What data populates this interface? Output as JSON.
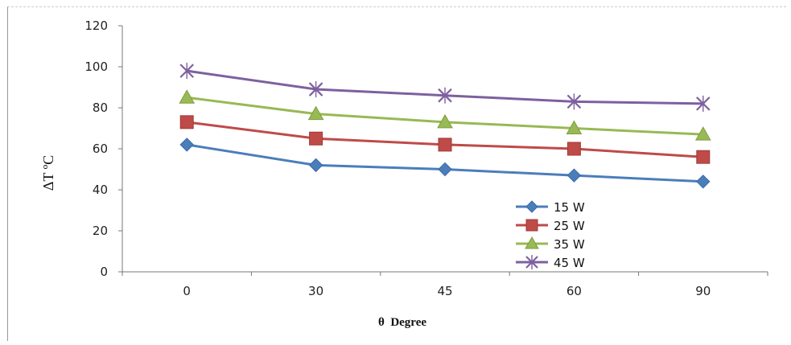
{
  "chart_data": {
    "type": "line",
    "xlabel": "θ  Degree",
    "ylabel": "ΔT ºC",
    "categories": [
      "0",
      "30",
      "45",
      "60",
      "90"
    ],
    "ylim": [
      0,
      120
    ],
    "yticks": [
      0,
      20,
      40,
      60,
      80,
      100,
      120
    ],
    "grid": false,
    "legend": "bottom-right inside plot",
    "series": [
      {
        "name": "15 W",
        "values": [
          62,
          52,
          50,
          47,
          44
        ],
        "color": "#4a7ebb",
        "marker": "diamond"
      },
      {
        "name": "25 W",
        "values": [
          73,
          65,
          62,
          60,
          56
        ],
        "color": "#be4b48",
        "marker": "square"
      },
      {
        "name": "35 W",
        "values": [
          85,
          77,
          73,
          70,
          67
        ],
        "color": "#98b954",
        "marker": "triangle"
      },
      {
        "name": "45 W",
        "values": [
          98,
          89,
          86,
          83,
          82
        ],
        "color": "#7d60a0",
        "marker": "x"
      }
    ]
  }
}
